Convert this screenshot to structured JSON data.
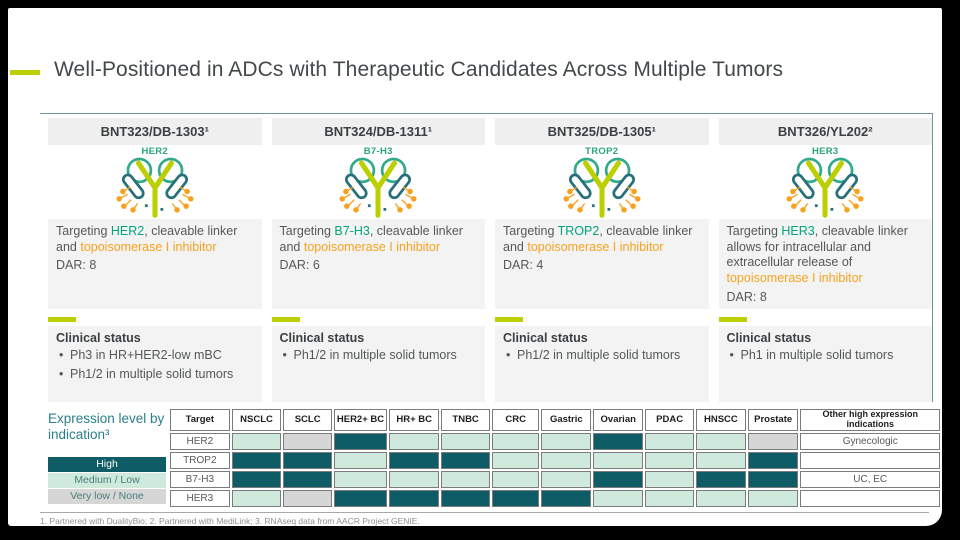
{
  "title": "Well-Positioned in ADCs with Therapeutic Candidates Across Multiple Tumors",
  "colors": {
    "accent_lime": "#bccf00",
    "target_green": "#00a57d",
    "payload_orange": "#f6a21e",
    "teal_dark": "#0e5d66",
    "teal_light": "#cfe9dd",
    "gray_level": "#d6d6d6",
    "rule_teal": "#69979e"
  },
  "labels": {
    "clinical_status": "Clinical status"
  },
  "candidates": [
    {
      "name": "BNT323/DB-1303¹",
      "target": "HER2",
      "desc": {
        "prefix": "Targeting ",
        "target": "HER2",
        "mid": ", cleavable linker and ",
        "payload": "topoisomerase I inhibitor",
        "dar": "DAR: 8"
      },
      "bullets": [
        "Ph3 in HR+HER2-low mBC",
        "Ph1/2 in multiple solid tumors"
      ]
    },
    {
      "name": "BNT324/DB-1311¹",
      "target": "B7-H3",
      "desc": {
        "prefix": "Targeting ",
        "target": "B7-H3",
        "mid": ", cleavable linker and ",
        "payload": "topoisomerase I inhibitor",
        "dar": "DAR: 6"
      },
      "bullets": [
        "Ph1/2 in multiple solid tumors"
      ]
    },
    {
      "name": "BNT325/DB-1305¹",
      "target": "TROP2",
      "desc": {
        "prefix": "Targeting ",
        "target": "TROP2",
        "mid": ", cleavable linker and ",
        "payload": "topoisomerase I inhibitor",
        "dar": "DAR: 4"
      },
      "bullets": [
        "Ph1/2 in multiple solid tumors"
      ]
    },
    {
      "name": "BNT326/YL202²",
      "target": "HER3",
      "desc": {
        "prefix": "Targeting ",
        "target": "HER3",
        "mid": ", cleavable linker allows for intracellular and extracellular release of ",
        "payload": "topoisomerase I inhibitor",
        "dar": "DAR: 8"
      },
      "bullets": [
        "Ph1 in multiple solid tumors"
      ]
    }
  ],
  "expression_table": {
    "legend_title": "Expression level by indication³",
    "legend": [
      {
        "label": "High",
        "level": "high"
      },
      {
        "label": "Medium / Low",
        "level": "medium"
      },
      {
        "label": "Very low / None",
        "level": "verylow"
      }
    ],
    "columns": [
      "Target",
      "NSCLC",
      "SCLC",
      "HER2+ BC",
      "HR+ BC",
      "TNBC",
      "CRC",
      "Gastric",
      "Ovarian",
      "PDAC",
      "HNSCC",
      "Prostate",
      "Other high expression indications"
    ],
    "level_key": {
      "H": "High",
      "M": "Medium / Low",
      "V": "Very low / None"
    },
    "rows": [
      {
        "target": "HER2",
        "cells": [
          "M",
          "V",
          "H",
          "M",
          "M",
          "M",
          "M",
          "H",
          "M",
          "M",
          "V"
        ],
        "other": "Gynecologic"
      },
      {
        "target": "TROP2",
        "cells": [
          "H",
          "H",
          "M",
          "H",
          "H",
          "M",
          "M",
          "M",
          "M",
          "M",
          "H"
        ],
        "other": ""
      },
      {
        "target": "B7-H3",
        "cells": [
          "H",
          "H",
          "M",
          "M",
          "M",
          "M",
          "M",
          "H",
          "M",
          "H",
          "H"
        ],
        "other": "UC, EC"
      },
      {
        "target": "HER3",
        "cells": [
          "M",
          "V",
          "H",
          "H",
          "H",
          "H",
          "H",
          "M",
          "M",
          "M",
          "M"
        ],
        "other": ""
      }
    ]
  },
  "footnote": "1. Partnered with DualityBio; 2. Partnered with MediLink; 3. RNAseq data from AACR Project GENIE."
}
